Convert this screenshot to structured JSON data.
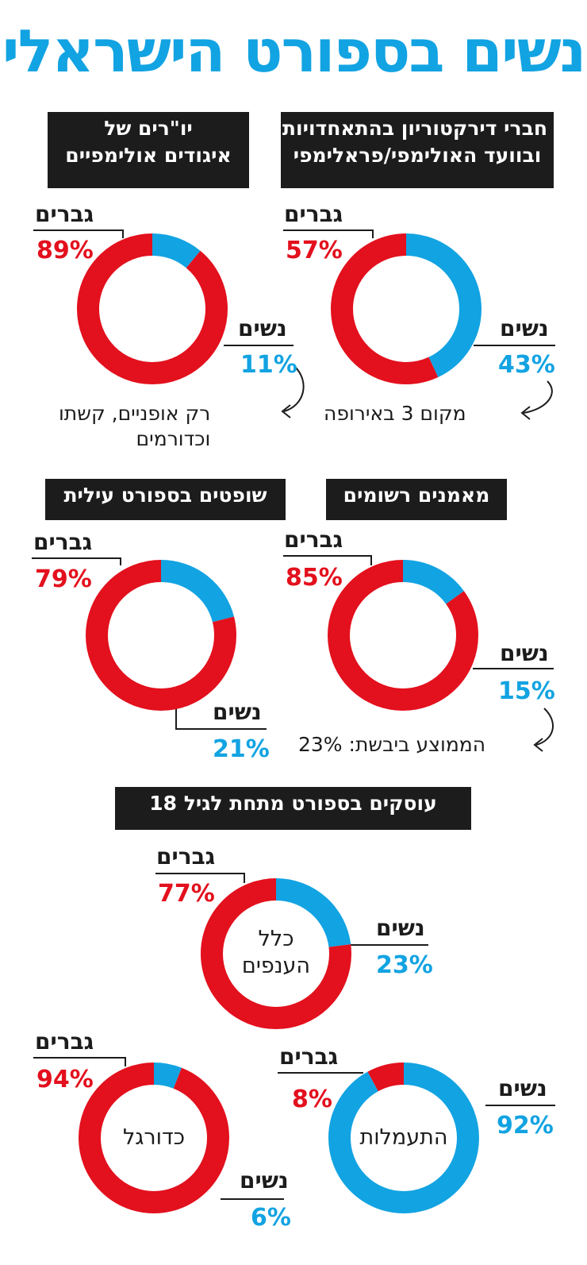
{
  "title": "נשים בספורט הישראלי",
  "colors": {
    "men": "#e3101d",
    "women": "#12a3e2",
    "header_bg": "#1c1c1c",
    "title": "#12a3e2"
  },
  "legend": {
    "men": "גברים",
    "women": "נשים"
  },
  "notes": {
    "directors": "מקום 3 באירופה",
    "chairs_line1": "רק אופניים, קשתו",
    "chairs_line2": "וכדורמים",
    "coaches": "הממוצע ביבשת: 23%"
  },
  "section_under18": "עוסקים בספורט מתחת לגיל 18",
  "chart_data": [
    {
      "type": "pie",
      "id": "directors",
      "title_lines": [
        "חברי דירקטוריון בהתאחדויות",
        "ובוועד האולימפי/פראלימפי"
      ],
      "slices": [
        {
          "label": "גברים",
          "value": 57,
          "display": "57%"
        },
        {
          "label": "נשים",
          "value": 43,
          "display": "43%"
        }
      ]
    },
    {
      "type": "pie",
      "id": "chairs",
      "title_lines": [
        "יו\"רים של",
        "איגודים אולימפיים"
      ],
      "slices": [
        {
          "label": "גברים",
          "value": 89,
          "display": "89%"
        },
        {
          "label": "נשים",
          "value": 11,
          "display": "11%"
        }
      ]
    },
    {
      "type": "pie",
      "id": "coaches",
      "title_lines": [
        "מאמנים רשומים"
      ],
      "slices": [
        {
          "label": "גברים",
          "value": 85,
          "display": "85%"
        },
        {
          "label": "נשים",
          "value": 15,
          "display": "15%"
        }
      ]
    },
    {
      "type": "pie",
      "id": "referees",
      "title_lines": [
        "שופטים בספורט עילית"
      ],
      "slices": [
        {
          "label": "גברים",
          "value": 79,
          "display": "79%"
        },
        {
          "label": "נשים",
          "value": 21,
          "display": "21%"
        }
      ]
    },
    {
      "type": "pie",
      "id": "all",
      "center_lines": [
        "כלל",
        "הענפים"
      ],
      "slices": [
        {
          "label": "גברים",
          "value": 77,
          "display": "77%"
        },
        {
          "label": "נשים",
          "value": 23,
          "display": "23%"
        }
      ]
    },
    {
      "type": "pie",
      "id": "football",
      "center_lines": [
        "כדורגל"
      ],
      "slices": [
        {
          "label": "גברים",
          "value": 94,
          "display": "94%"
        },
        {
          "label": "נשים",
          "value": 6,
          "display": "6%"
        }
      ]
    },
    {
      "type": "pie",
      "id": "gymnastics",
      "center_lines": [
        "התעמלות"
      ],
      "slices": [
        {
          "label": "גברים",
          "value": 8,
          "display": "8%"
        },
        {
          "label": "נשים",
          "value": 92,
          "display": "92%"
        }
      ]
    }
  ]
}
